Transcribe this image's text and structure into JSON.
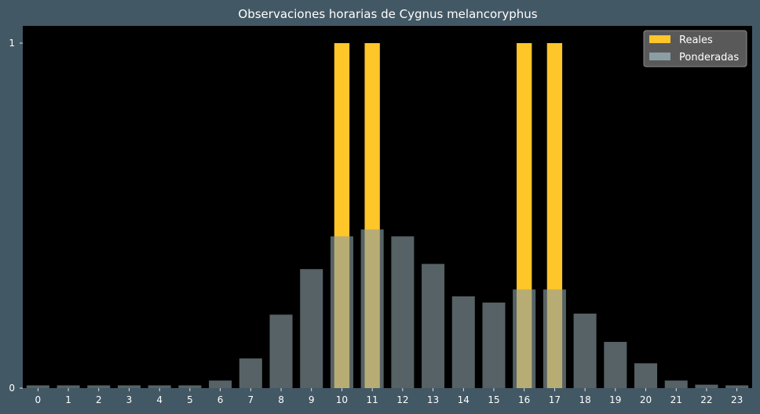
{
  "chart_data": {
    "type": "bar",
    "title": "Observaciones horarias de Cygnus melancoryphus",
    "xlabel": "",
    "ylabel": "",
    "categories": [
      "0",
      "1",
      "2",
      "3",
      "4",
      "5",
      "6",
      "7",
      "8",
      "9",
      "10",
      "11",
      "12",
      "13",
      "14",
      "15",
      "16",
      "17",
      "18",
      "19",
      "20",
      "21",
      "22",
      "23"
    ],
    "ylim": [
      0,
      1.05
    ],
    "yticks": [
      "0",
      "1"
    ],
    "grid": false,
    "legend_position": "top-right",
    "series": [
      {
        "name": "Reales",
        "color": "#ffc629",
        "values": [
          0,
          0,
          0,
          0,
          0,
          0,
          0,
          0,
          0,
          0,
          1,
          1,
          0,
          0,
          0,
          0,
          1,
          1,
          0,
          0,
          0,
          0,
          0,
          0
        ]
      },
      {
        "name": "Ponderadas",
        "color": "#8a9ea3",
        "values": [
          0.008,
          0.008,
          0.008,
          0.008,
          0.008,
          0.008,
          0.022,
          0.086,
          0.213,
          0.345,
          0.44,
          0.46,
          0.44,
          0.36,
          0.266,
          0.248,
          0.286,
          0.286,
          0.216,
          0.134,
          0.072,
          0.022,
          0.01,
          0.008
        ]
      }
    ]
  }
}
